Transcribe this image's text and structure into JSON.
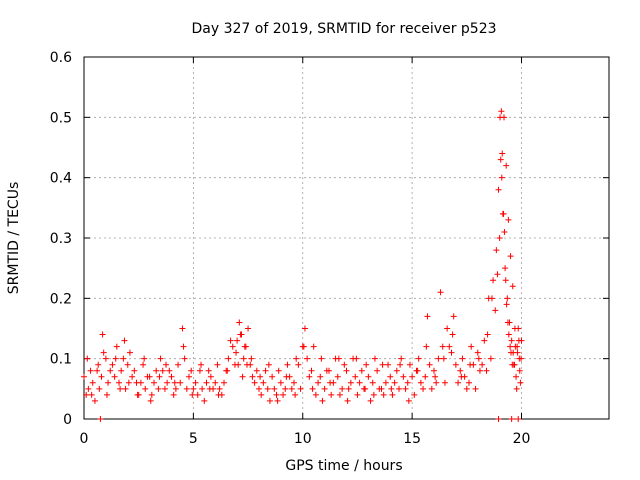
{
  "chart_data": {
    "type": "scatter",
    "title": "Day 327 of 2019, SRMTID for receiver p523",
    "xlabel": "GPS time / hours",
    "ylabel": "SRMTID / TECUs",
    "xlim": [
      0,
      24
    ],
    "ylim": [
      0,
      0.6
    ],
    "xticks": [
      0,
      5,
      10,
      15,
      20
    ],
    "yticks": [
      0,
      0.1,
      0.2,
      0.3,
      0.4,
      0.5,
      0.6
    ],
    "xtick_labels": [
      "0",
      "5",
      "10",
      "15",
      "20"
    ],
    "ytick_labels": [
      "0",
      "0.1",
      "0.2",
      "0.3",
      "0.4",
      "0.5",
      "0.6"
    ],
    "grid": true,
    "marker": "+",
    "color": "#ff0000",
    "series": [
      {
        "name": "SRMTID",
        "x": [
          0.0,
          0.2,
          0.4,
          0.6,
          0.8,
          1.0,
          1.2,
          1.4,
          1.6,
          1.8,
          2.0,
          2.2,
          2.4,
          2.6,
          2.8,
          3.0,
          3.2,
          3.4,
          3.6,
          3.8,
          4.0,
          4.2,
          4.4,
          4.6,
          4.8,
          5.0,
          5.2,
          5.4,
          5.6,
          5.8,
          6.0,
          6.2,
          6.4,
          6.6,
          6.8,
          7.0,
          7.2,
          7.4,
          7.6,
          7.8,
          8.0,
          8.2,
          8.4,
          8.6,
          8.8,
          9.0,
          9.2,
          9.4,
          9.6,
          9.8,
          10.0,
          10.2,
          10.4,
          10.6,
          10.8,
          11.0,
          11.2,
          11.4,
          11.6,
          11.8,
          12.0,
          12.2,
          12.4,
          12.6,
          12.8,
          13.0,
          13.2,
          13.4,
          13.6,
          13.8,
          14.0,
          14.2,
          14.4,
          14.6,
          14.8,
          15.0,
          15.2,
          15.4,
          15.6,
          15.8,
          16.0,
          16.2,
          16.4,
          16.6,
          16.8,
          17.0,
          17.2,
          17.4,
          17.6,
          17.8,
          18.0,
          18.2,
          18.4,
          18.6,
          18.8,
          18.9,
          19.0,
          19.1,
          19.2,
          19.3,
          19.4,
          19.5,
          19.6,
          19.7,
          19.8,
          19.9,
          20.0
        ],
        "y": [
          0.07,
          0.05,
          0.06,
          0.08,
          0.07,
          0.1,
          0.08,
          0.07,
          0.06,
          0.1,
          0.09,
          0.07,
          0.06,
          0.06,
          0.05,
          0.07,
          0.06,
          0.05,
          0.08,
          0.06,
          0.07,
          0.05,
          0.06,
          0.1,
          0.07,
          0.05,
          0.04,
          0.05,
          0.06,
          0.07,
          0.06,
          0.05,
          0.06,
          0.1,
          0.12,
          0.13,
          0.14,
          0.12,
          0.09,
          0.06,
          0.05,
          0.06,
          0.05,
          0.07,
          0.04,
          0.06,
          0.05,
          0.07,
          0.06,
          0.09,
          0.12,
          0.1,
          0.08,
          0.04,
          0.07,
          0.05,
          0.08,
          0.06,
          0.07,
          0.05,
          0.08,
          0.06,
          0.07,
          0.06,
          0.05,
          0.07,
          0.06,
          0.08,
          0.05,
          0.06,
          0.07,
          0.06,
          0.05,
          0.07,
          0.06,
          0.07,
          0.08,
          0.06,
          0.07,
          0.09,
          0.08,
          0.1,
          0.12,
          0.15,
          0.11,
          0.09,
          0.08,
          0.07,
          0.06,
          0.09,
          0.11,
          0.09,
          0.08,
          0.1,
          0.18,
          0.24,
          0.3,
          0.4,
          0.5,
          0.42,
          0.33,
          0.27,
          0.22,
          0.15,
          0.12,
          0.1,
          0.13
        ]
      },
      {
        "name": "SRMTID",
        "x": [
          0.1,
          0.3,
          0.5,
          0.7,
          0.9,
          1.1,
          1.3,
          1.5,
          1.7,
          1.9,
          2.1,
          2.3,
          2.5,
          2.7,
          2.9,
          3.1,
          3.3,
          3.5,
          3.7,
          3.9,
          4.1,
          4.3,
          4.5,
          4.7,
          4.9,
          5.1,
          5.3,
          5.5,
          5.7,
          5.9,
          6.1,
          6.3,
          6.5,
          6.7,
          6.9,
          7.1,
          7.3,
          7.5,
          7.7,
          7.9,
          8.1,
          8.3,
          8.5,
          8.7,
          8.9,
          9.1,
          9.3,
          9.5,
          9.7,
          9.9,
          10.1,
          10.3,
          10.5,
          10.7,
          10.9,
          11.1,
          11.3,
          11.5,
          11.7,
          11.9,
          12.1,
          12.3,
          12.5,
          12.7,
          12.9,
          13.1,
          13.3,
          13.5,
          13.7,
          13.9,
          14.1,
          14.3,
          14.5,
          14.7,
          14.9,
          15.1,
          15.3,
          15.5,
          15.7,
          15.9,
          16.1,
          16.3,
          16.5,
          16.7,
          16.9,
          17.1,
          17.3,
          17.5,
          17.7,
          17.9,
          18.1,
          18.3,
          18.5,
          18.7,
          18.85,
          18.95,
          19.05,
          19.15,
          19.25,
          19.35,
          19.45,
          19.55,
          19.65,
          19.75,
          19.85,
          19.95
        ],
        "y": [
          0.04,
          0.08,
          0.03,
          0.05,
          0.11,
          0.06,
          0.09,
          0.12,
          0.08,
          0.05,
          0.11,
          0.08,
          0.04,
          0.09,
          0.07,
          0.04,
          0.08,
          0.1,
          0.05,
          0.08,
          0.04,
          0.09,
          0.15,
          0.05,
          0.08,
          0.06,
          0.08,
          0.03,
          0.08,
          0.05,
          0.09,
          0.04,
          0.08,
          0.13,
          0.09,
          0.16,
          0.1,
          0.15,
          0.07,
          0.08,
          0.04,
          0.08,
          0.03,
          0.05,
          0.08,
          0.04,
          0.09,
          0.05,
          0.1,
          0.05,
          0.15,
          0.07,
          0.12,
          0.06,
          0.03,
          0.08,
          0.04,
          0.1,
          0.04,
          0.09,
          0.05,
          0.1,
          0.04,
          0.08,
          0.09,
          0.03,
          0.1,
          0.05,
          0.04,
          0.09,
          0.04,
          0.08,
          0.1,
          0.05,
          0.09,
          0.04,
          0.1,
          0.05,
          0.17,
          0.05,
          0.06,
          0.21,
          0.06,
          0.12,
          0.17,
          0.06,
          0.1,
          0.05,
          0.12,
          0.05,
          0.08,
          0.13,
          0.2,
          0.23,
          0.28,
          0.38,
          0.43,
          0.34,
          0.25,
          0.2,
          0.16,
          0.13,
          0.09,
          0.07,
          0.15,
          0.06
        ]
      },
      {
        "name": "SRMTID",
        "x": [
          0.15,
          0.35,
          0.65,
          0.85,
          1.05,
          1.45,
          1.65,
          1.85,
          2.05,
          2.45,
          2.75,
          3.05,
          3.45,
          3.75,
          4.15,
          4.55,
          4.95,
          5.35,
          5.75,
          6.15,
          6.55,
          6.95,
          7.05,
          7.15,
          7.25,
          7.35,
          7.45,
          7.65,
          8.05,
          8.45,
          8.85,
          9.25,
          9.65,
          10.05,
          10.45,
          10.85,
          11.25,
          11.65,
          12.05,
          12.45,
          12.85,
          13.25,
          13.65,
          14.05,
          14.45,
          14.85,
          15.25,
          15.65,
          16.05,
          16.45,
          16.85,
          17.25,
          17.65,
          18.05,
          18.45,
          18.65,
          19.02,
          19.08,
          19.12,
          19.18,
          19.22,
          19.28,
          19.32,
          19.38,
          19.42,
          19.48,
          19.52,
          19.58,
          19.62,
          19.68,
          19.72,
          19.78,
          19.82,
          19.88,
          19.92,
          19.98,
          0.75,
          18.95,
          19.55,
          19.85
        ],
        "y": [
          0.1,
          0.04,
          0.09,
          0.14,
          0.04,
          0.1,
          0.05,
          0.13,
          0.06,
          0.04,
          0.1,
          0.03,
          0.07,
          0.09,
          0.06,
          0.12,
          0.04,
          0.09,
          0.05,
          0.04,
          0.08,
          0.11,
          0.09,
          0.14,
          0.07,
          0.12,
          0.09,
          0.1,
          0.07,
          0.09,
          0.03,
          0.07,
          0.04,
          0.12,
          0.05,
          0.1,
          0.06,
          0.1,
          0.03,
          0.1,
          0.05,
          0.04,
          0.09,
          0.05,
          0.09,
          0.03,
          0.08,
          0.12,
          0.07,
          0.1,
          0.14,
          0.07,
          0.09,
          0.1,
          0.14,
          0.2,
          0.5,
          0.51,
          0.44,
          0.34,
          0.31,
          0.23,
          0.19,
          0.16,
          0.14,
          0.12,
          0.11,
          0.09,
          0.11,
          0.09,
          0.12,
          0.05,
          0.11,
          0.13,
          0.08,
          0.1,
          0.0,
          0.0,
          0.0,
          0.0
        ]
      }
    ]
  }
}
